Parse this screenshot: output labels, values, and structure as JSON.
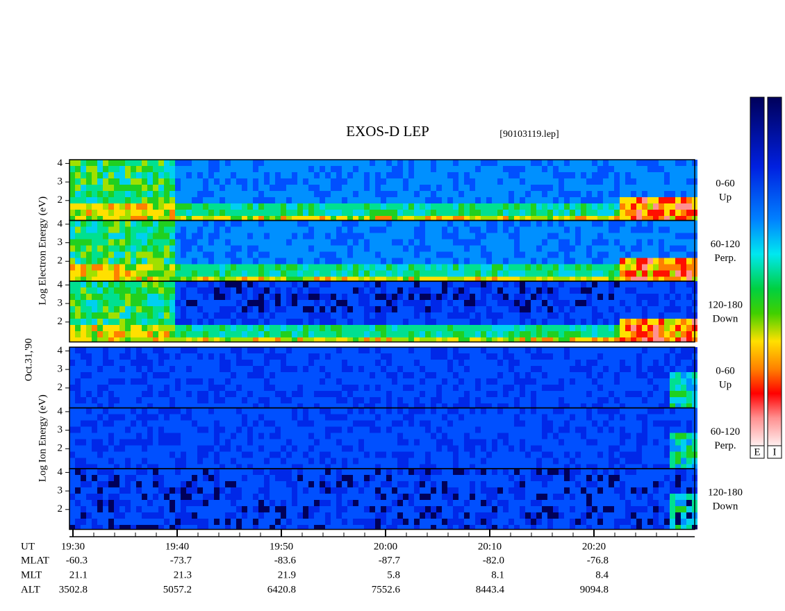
{
  "header": {
    "title": "EXOS-D LEP",
    "file": "[90103119.lep]"
  },
  "date": "Oct.31,'90",
  "groups": [
    {
      "label": "Log Electron Energy (eV)",
      "kind": "electron",
      "panels": [
        {
          "label": [
            "0-60",
            "Up"
          ],
          "yticks": [
            2,
            3,
            4
          ]
        },
        {
          "label": [
            "60-120",
            "Perp."
          ],
          "yticks": [
            2,
            3,
            4
          ]
        },
        {
          "label": [
            "120-180",
            "Down"
          ],
          "yticks": [
            2,
            3,
            4
          ]
        }
      ]
    },
    {
      "label": "Log Ion Energy (eV)",
      "kind": "ion",
      "panels": [
        {
          "label": [
            "0-60",
            "Up"
          ],
          "yticks": [
            2,
            3,
            4
          ]
        },
        {
          "label": [
            "60-120",
            "Perp."
          ],
          "yticks": [
            2,
            3,
            4
          ]
        },
        {
          "label": [
            "120-180",
            "Down"
          ],
          "yticks": [
            2,
            3,
            4
          ]
        }
      ]
    }
  ],
  "colorbars": [
    "E",
    "I"
  ],
  "table": {
    "row_labels": [
      "UT",
      "MLAT",
      "MLT",
      "ALT"
    ],
    "rows": [
      [
        "19:30",
        "19:40",
        "19:50",
        "20:00",
        "20:10",
        "20:20"
      ],
      [
        "-60.3",
        "-73.7",
        "-83.6",
        "-87.7",
        "-82.0",
        "-76.8"
      ],
      [
        "21.1",
        "21.3",
        "21.9",
        "5.8",
        "8.1",
        "8.4"
      ],
      [
        "3502.8",
        "5057.2",
        "6420.8",
        "7552.6",
        "8443.4",
        "9094.8"
      ]
    ]
  }
}
